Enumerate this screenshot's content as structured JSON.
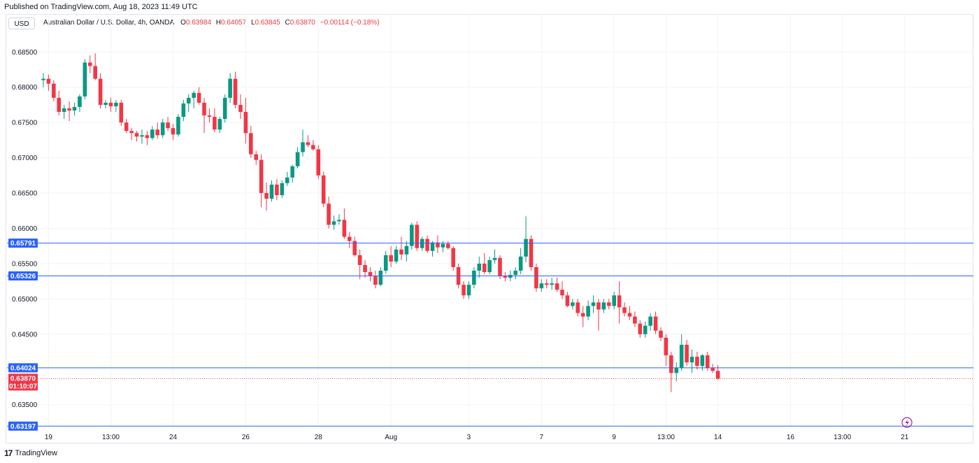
{
  "header": {
    "published": "Published on TradingView.com, Aug 18, 2023 11:49 UTC"
  },
  "toolbar": {
    "currency": "USD"
  },
  "legend": {
    "title": "Australian Dollar / U.S. Dollar, 4h, OANDA",
    "o_label": "O",
    "o_value": "0.63984",
    "h_label": "H",
    "h_value": "0.64057",
    "l_label": "L",
    "l_value": "0.63845",
    "c_label": "C",
    "c_value": "0.63870",
    "change": "−0.00114 (−0.18%)"
  },
  "footer": {
    "brand": "TradingView",
    "logo_text": "17"
  },
  "colors": {
    "up": "#089981",
    "down": "#f23645",
    "level": "#2962ff",
    "grid": "#f0f3fa"
  },
  "chart_data": {
    "type": "candlestick",
    "ylim": [
      0.6315,
      0.688
    ],
    "yticks": [
      "0.68500",
      "0.68000",
      "0.67500",
      "0.67000",
      "0.66500",
      "0.66000",
      "0.65500",
      "0.65000",
      "0.64500",
      "0.64000",
      "0.63500"
    ],
    "xticks": [
      {
        "label": "19",
        "index": 1
      },
      {
        "label": "13:00",
        "index": 13
      },
      {
        "label": "24",
        "index": 25
      },
      {
        "label": "26",
        "index": 39
      },
      {
        "label": "28",
        "index": 53
      },
      {
        "label": "Aug",
        "index": 67
      },
      {
        "label": "3",
        "index": 82
      },
      {
        "label": "7",
        "index": 96
      },
      {
        "label": "9",
        "index": 110
      },
      {
        "label": "13:00",
        "index": 120
      },
      {
        "label": "14",
        "index": 130
      },
      {
        "label": "16",
        "index": 144
      },
      {
        "label": "13:00",
        "index": 154
      },
      {
        "label": "21",
        "index": 166
      }
    ],
    "levels": [
      {
        "value": 0.65791,
        "label": "0.65791"
      },
      {
        "value": 0.65326,
        "label": "0.65326"
      },
      {
        "value": 0.64024,
        "label": "0.64024"
      },
      {
        "value": 0.63197,
        "label": "0.63197"
      }
    ],
    "last_price": {
      "value": 0.6387,
      "label": "0.63870",
      "countdown": "01:10:07"
    },
    "candles": [
      [
        0.681,
        0.682,
        0.68,
        0.6812
      ],
      [
        0.6812,
        0.6818,
        0.6795,
        0.6805
      ],
      [
        0.6805,
        0.681,
        0.678,
        0.6785
      ],
      [
        0.6785,
        0.6795,
        0.676,
        0.6765
      ],
      [
        0.6765,
        0.6775,
        0.6755,
        0.677
      ],
      [
        0.677,
        0.678,
        0.6752,
        0.6767
      ],
      [
        0.6767,
        0.6778,
        0.676,
        0.6772
      ],
      [
        0.6772,
        0.679,
        0.6765,
        0.6787
      ],
      [
        0.6787,
        0.684,
        0.6783,
        0.6835
      ],
      [
        0.6835,
        0.6845,
        0.682,
        0.683
      ],
      [
        0.683,
        0.6848,
        0.681,
        0.6812
      ],
      [
        0.6812,
        0.682,
        0.677,
        0.6775
      ],
      [
        0.6775,
        0.6782,
        0.677,
        0.6778
      ],
      [
        0.6778,
        0.6785,
        0.6765,
        0.6773
      ],
      [
        0.6773,
        0.6782,
        0.6765,
        0.6778
      ],
      [
        0.6778,
        0.6782,
        0.6745,
        0.675
      ],
      [
        0.675,
        0.6755,
        0.6735,
        0.6738
      ],
      [
        0.6738,
        0.6742,
        0.6725,
        0.6735
      ],
      [
        0.6735,
        0.6738,
        0.6723,
        0.673
      ],
      [
        0.673,
        0.674,
        0.672,
        0.6732
      ],
      [
        0.6732,
        0.6738,
        0.6718,
        0.6728
      ],
      [
        0.6728,
        0.6745,
        0.6725,
        0.674
      ],
      [
        0.674,
        0.675,
        0.6727,
        0.6732
      ],
      [
        0.6732,
        0.6755,
        0.6728,
        0.675
      ],
      [
        0.675,
        0.6758,
        0.6738,
        0.6742
      ],
      [
        0.6742,
        0.6748,
        0.6725,
        0.6733
      ],
      [
        0.6733,
        0.6762,
        0.673,
        0.6758
      ],
      [
        0.6758,
        0.6782,
        0.6752,
        0.6777
      ],
      [
        0.6777,
        0.679,
        0.6765,
        0.6785
      ],
      [
        0.6785,
        0.6795,
        0.677,
        0.6792
      ],
      [
        0.6792,
        0.68,
        0.6775,
        0.6778
      ],
      [
        0.6778,
        0.6785,
        0.6735,
        0.676
      ],
      [
        0.676,
        0.677,
        0.675,
        0.6758
      ],
      [
        0.6758,
        0.677,
        0.6736,
        0.674
      ],
      [
        0.674,
        0.6758,
        0.6735,
        0.6755
      ],
      [
        0.6755,
        0.679,
        0.675,
        0.6785
      ],
      [
        0.6785,
        0.682,
        0.6778,
        0.6812
      ],
      [
        0.6812,
        0.6822,
        0.677,
        0.6775
      ],
      [
        0.6775,
        0.679,
        0.6755,
        0.6765
      ],
      [
        0.6765,
        0.6785,
        0.672,
        0.6735
      ],
      [
        0.6735,
        0.6745,
        0.67,
        0.6705
      ],
      [
        0.6705,
        0.671,
        0.669,
        0.6697
      ],
      [
        0.6697,
        0.6705,
        0.663,
        0.665
      ],
      [
        0.665,
        0.6665,
        0.6625,
        0.6642
      ],
      [
        0.6642,
        0.6668,
        0.6638,
        0.6662
      ],
      [
        0.6662,
        0.667,
        0.664,
        0.6647
      ],
      [
        0.6647,
        0.6668,
        0.6643,
        0.6664
      ],
      [
        0.6664,
        0.668,
        0.666,
        0.6672
      ],
      [
        0.6672,
        0.669,
        0.6665,
        0.6688
      ],
      [
        0.6688,
        0.6715,
        0.6685,
        0.6708
      ],
      [
        0.6708,
        0.674,
        0.6702,
        0.6722
      ],
      [
        0.6722,
        0.6732,
        0.6715,
        0.6718
      ],
      [
        0.6718,
        0.6725,
        0.671,
        0.6712
      ],
      [
        0.6712,
        0.6718,
        0.667,
        0.6675
      ],
      [
        0.6675,
        0.668,
        0.663,
        0.6635
      ],
      [
        0.6635,
        0.6645,
        0.66,
        0.6605
      ],
      [
        0.6605,
        0.6618,
        0.6598,
        0.661
      ],
      [
        0.661,
        0.662,
        0.6605,
        0.6612
      ],
      [
        0.6612,
        0.6628,
        0.6585,
        0.6588
      ],
      [
        0.6588,
        0.6595,
        0.6572,
        0.6582
      ],
      [
        0.6582,
        0.6588,
        0.656,
        0.6562
      ],
      [
        0.6562,
        0.657,
        0.6528,
        0.6548
      ],
      [
        0.6548,
        0.6555,
        0.653,
        0.6538
      ],
      [
        0.6538,
        0.6545,
        0.6525,
        0.6532
      ],
      [
        0.6532,
        0.654,
        0.6515,
        0.652
      ],
      [
        0.652,
        0.6545,
        0.6518,
        0.654
      ],
      [
        0.654,
        0.6568,
        0.6536,
        0.6562
      ],
      [
        0.6562,
        0.6575,
        0.6545,
        0.6553
      ],
      [
        0.6553,
        0.6575,
        0.655,
        0.657
      ],
      [
        0.657,
        0.6588,
        0.6555,
        0.6563
      ],
      [
        0.6563,
        0.6582,
        0.6553,
        0.6575
      ],
      [
        0.6575,
        0.6608,
        0.657,
        0.6605
      ],
      [
        0.6605,
        0.661,
        0.6568,
        0.6572
      ],
      [
        0.6572,
        0.6588,
        0.6568,
        0.6585
      ],
      [
        0.6585,
        0.659,
        0.6565,
        0.6568
      ],
      [
        0.6568,
        0.6582,
        0.656,
        0.658
      ],
      [
        0.658,
        0.659,
        0.6565,
        0.6573
      ],
      [
        0.6573,
        0.6582,
        0.6566,
        0.6578
      ],
      [
        0.6578,
        0.6582,
        0.657,
        0.6572
      ],
      [
        0.6572,
        0.6575,
        0.654,
        0.6545
      ],
      [
        0.6545,
        0.655,
        0.6515,
        0.652
      ],
      [
        0.652,
        0.6525,
        0.65,
        0.6505
      ],
      [
        0.6505,
        0.6525,
        0.65,
        0.652
      ],
      [
        0.652,
        0.6545,
        0.6515,
        0.654
      ],
      [
        0.654,
        0.656,
        0.653,
        0.655
      ],
      [
        0.655,
        0.6565,
        0.6535,
        0.6538
      ],
      [
        0.6538,
        0.656,
        0.6535,
        0.6555
      ],
      [
        0.6555,
        0.657,
        0.655,
        0.6558
      ],
      [
        0.6558,
        0.6562,
        0.6528,
        0.6532
      ],
      [
        0.6532,
        0.6538,
        0.6525,
        0.653
      ],
      [
        0.653,
        0.654,
        0.6525,
        0.6534
      ],
      [
        0.6534,
        0.6545,
        0.6528,
        0.654
      ],
      [
        0.654,
        0.6572,
        0.6535,
        0.656
      ],
      [
        0.656,
        0.6617,
        0.6552,
        0.6585
      ],
      [
        0.6585,
        0.659,
        0.654,
        0.6545
      ],
      [
        0.6545,
        0.655,
        0.651,
        0.6515
      ],
      [
        0.6515,
        0.6528,
        0.651,
        0.6522
      ],
      [
        0.6522,
        0.6528,
        0.6515,
        0.652
      ],
      [
        0.652,
        0.653,
        0.6513,
        0.6522
      ],
      [
        0.6522,
        0.653,
        0.651,
        0.6513
      ],
      [
        0.6513,
        0.6525,
        0.65,
        0.6505
      ],
      [
        0.6505,
        0.651,
        0.6488,
        0.649
      ],
      [
        0.649,
        0.65,
        0.6485,
        0.6495
      ],
      [
        0.6495,
        0.65,
        0.6475,
        0.648
      ],
      [
        0.648,
        0.649,
        0.646,
        0.6475
      ],
      [
        0.6475,
        0.6498,
        0.647,
        0.649
      ],
      [
        0.649,
        0.6505,
        0.648,
        0.6495
      ],
      [
        0.6495,
        0.65,
        0.6455,
        0.6485
      ],
      [
        0.6485,
        0.65,
        0.648,
        0.6495
      ],
      [
        0.6495,
        0.65,
        0.6485,
        0.649
      ],
      [
        0.649,
        0.651,
        0.6485,
        0.6505
      ],
      [
        0.6505,
        0.6525,
        0.6465,
        0.6488
      ],
      [
        0.6488,
        0.6495,
        0.6475,
        0.648
      ],
      [
        0.648,
        0.649,
        0.647,
        0.6475
      ],
      [
        0.6475,
        0.6482,
        0.646,
        0.6465
      ],
      [
        0.6465,
        0.647,
        0.6445,
        0.645
      ],
      [
        0.645,
        0.6468,
        0.6445,
        0.6462
      ],
      [
        0.6462,
        0.648,
        0.6455,
        0.6475
      ],
      [
        0.6475,
        0.6482,
        0.645,
        0.6455
      ],
      [
        0.6455,
        0.646,
        0.644,
        0.6445
      ],
      [
        0.6445,
        0.645,
        0.6405,
        0.642
      ],
      [
        0.642,
        0.6425,
        0.6368,
        0.6395
      ],
      [
        0.6395,
        0.641,
        0.6383,
        0.6402
      ],
      [
        0.6402,
        0.645,
        0.6398,
        0.6435
      ],
      [
        0.6435,
        0.6442,
        0.6405,
        0.641
      ],
      [
        0.641,
        0.6428,
        0.6395,
        0.6418
      ],
      [
        0.6418,
        0.6425,
        0.64,
        0.6405
      ],
      [
        0.6405,
        0.6422,
        0.6398,
        0.642
      ],
      [
        0.642,
        0.6425,
        0.6398,
        0.6402
      ],
      [
        0.6402,
        0.6408,
        0.6395,
        0.6398
      ],
      [
        0.6398,
        0.6406,
        0.6385,
        0.6387
      ]
    ]
  }
}
